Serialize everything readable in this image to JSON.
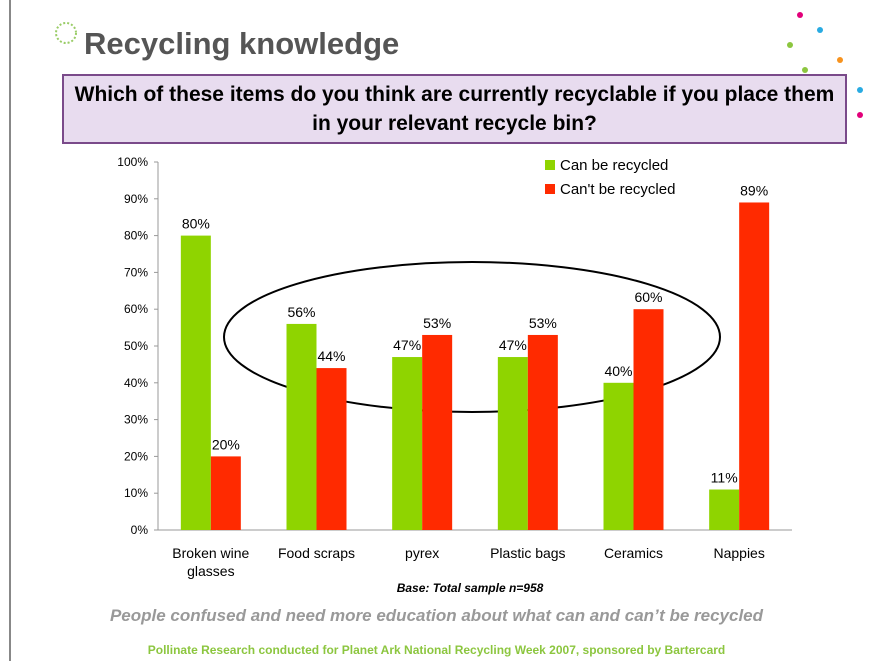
{
  "header": {
    "title": "Recycling knowledge"
  },
  "chart_data": {
    "type": "bar",
    "subtitle": "Which of these items do you think are currently recyclable if you place them in your relevant recycle bin?",
    "categories": [
      "Broken wine glasses",
      "Food scraps",
      "pyrex",
      "Plastic bags",
      "Ceramics",
      "Nappies"
    ],
    "series": [
      {
        "name": "Can be recycled",
        "color": "#8fd400",
        "values": [
          80,
          56,
          47,
          47,
          40,
          11
        ],
        "value_labels": [
          "80%",
          "56%",
          "47%",
          "47%",
          "40%",
          "11%"
        ]
      },
      {
        "name": "Can't be recycled",
        "color": "#ff2a00",
        "values": [
          20,
          44,
          53,
          53,
          60,
          89
        ],
        "value_labels": [
          "20%",
          "44%",
          "53%",
          "53%",
          "60%",
          "89%"
        ]
      }
    ],
    "ylim": [
      0,
      100
    ],
    "yticks": [
      {
        "value": 0,
        "label": "0%"
      },
      {
        "value": 10,
        "label": "10%"
      },
      {
        "value": 20,
        "label": "20%"
      },
      {
        "value": 30,
        "label": "30%"
      },
      {
        "value": 40,
        "label": "40%"
      },
      {
        "value": 50,
        "label": "50%"
      },
      {
        "value": 60,
        "label": "60%"
      },
      {
        "value": 70,
        "label": "70%"
      },
      {
        "value": 80,
        "label": "80%"
      },
      {
        "value": 90,
        "label": "90%"
      },
      {
        "value": 100,
        "label": "100%"
      }
    ],
    "legend": "upper right",
    "note": "Base: Total sample n=958"
  },
  "footer": {
    "conclusion": "People confused and need more education about what can and can’t be recycled",
    "source": "Pollinate Research conducted for Planet Ark National Recycling Week 2007, sponsored by Bartercard"
  }
}
